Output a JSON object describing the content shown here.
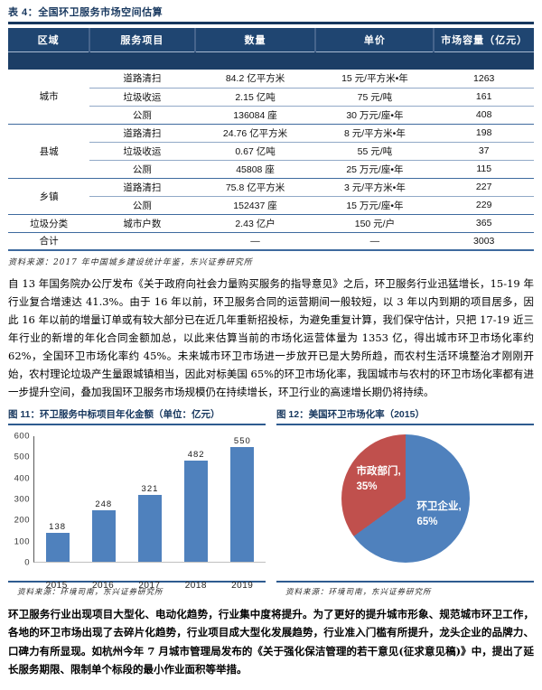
{
  "table": {
    "tag": "表 4：",
    "title": "全国环卫服务市场空间估算",
    "headers": [
      "区域",
      "服务项目",
      "数量",
      "单价",
      "市场容量（亿元）"
    ],
    "groups": [
      {
        "region": "城市",
        "rows": [
          [
            "道路清扫",
            "84.2 亿平方米",
            "15 元/平方米•年",
            "1263"
          ],
          [
            "垃圾收运",
            "2.15 亿吨",
            "75 元/吨",
            "161"
          ],
          [
            "公厕",
            "136084 座",
            "30 万元/座•年",
            "408"
          ]
        ]
      },
      {
        "region": "县城",
        "rows": [
          [
            "道路清扫",
            "24.76 亿平方米",
            "8 元/平方米•年",
            "198"
          ],
          [
            "垃圾收运",
            "0.67 亿吨",
            "55 元/吨",
            "37"
          ],
          [
            "公厕",
            "45808 座",
            "25 万元/座•年",
            "115"
          ]
        ]
      },
      {
        "region": "乡镇",
        "rows": [
          [
            "道路清扫",
            "75.8 亿平方米",
            "3 元/平方米•年",
            "227"
          ],
          [
            "公厕",
            "152437 座",
            "15 万元/座•年",
            "229"
          ]
        ]
      },
      {
        "region": "垃圾分类",
        "rows": [
          [
            "城市户数",
            "2.43 亿户",
            "150 元/户",
            "365"
          ]
        ]
      },
      {
        "region": "合计",
        "rows": [
          [
            "",
            "—",
            "—",
            "3003"
          ]
        ]
      }
    ],
    "source": "资料来源：2017 年中国城乡建设统计年鉴，东兴证券研究所"
  },
  "paragraph1": "自 13 年国务院办公厅发布《关于政府向社会力量购买服务的指导意见》之后，环卫服务行业迅猛增长，15-19 年行业复合增速达 41.3%。由于 16 年以前，环卫服务合同的运营期间一般较短，以 3 年以内到期的项目居多，因此 16 年以前的增量订单或有较大部分已在近几年重新招投标，为避免重复计算，我们保守估计，只把 17-19 近三年行业的新增的年化合同金额加总，以此来估算当前的市场化运营体量为 1353 亿，得出城市环卫市场化率约 62%，全国环卫市场化率约 45%。未来城市环卫市场进一步放开已是大势所趋，而农村生活环境整治才刚刚开始，农村理论垃圾产生量跟城镇相当，因此对标美国 65%的环卫市场化率，我国城市与农村的环卫市场化率都有进一步提升空间，叠加我国环卫服务市场规模仍在持续增长，环卫行业的高速增长期仍将持续。",
  "figures": {
    "fig11": {
      "title": "图 11：环卫服务中标项目年化金额（单位：亿元）",
      "source": "资料来源：环境司南，东兴证券研究所"
    },
    "fig12": {
      "title": "图 12：美国环卫市场化率（2015）",
      "source": "资料来源：环境司南，东兴证券研究所"
    }
  },
  "chart_data": [
    {
      "type": "bar",
      "title": "环卫服务中标项目年化金额（单位：亿元）",
      "categories": [
        "2015",
        "2016",
        "2017",
        "2018",
        "2019"
      ],
      "values": [
        138,
        248,
        321,
        482,
        550
      ],
      "ylim": [
        0,
        600
      ],
      "ytick_step": 100,
      "grid": false,
      "bar_color": "#4F81BD"
    },
    {
      "type": "pie",
      "title": "美国环卫市场化率（2015）",
      "labels": [
        "环卫企业",
        "市政部门"
      ],
      "values": [
        65,
        35
      ],
      "colors": [
        "#4F81BD",
        "#C0504D"
      ],
      "label_texts": [
        "环卫企业, 65%",
        "市政部门, 35%"
      ],
      "start_angle_deg": 0
    }
  ],
  "paragraph2": "环卫服务行业出现项目大型化、电动化趋势，行业集中度将提升。为了更好的提升城市形象、规范城市环卫工作，各地的环卫市场出现了去碎片化趋势，行业项目成大型化发展趋势，行业准入门槛有所提升，龙头企业的品牌力、口碑力有所显现。如杭州今年 7 月城市管理局发布的《关于强化保洁管理的若干意见(征求意见稿)》中，提出了延长服务期限、限制单个标段的最小作业面积等举措。",
  "colors": {
    "navy": "#17375E",
    "table_header_bg": "#1F4571",
    "bar_blue": "#4F81BD",
    "pie_red": "#C0504D"
  }
}
